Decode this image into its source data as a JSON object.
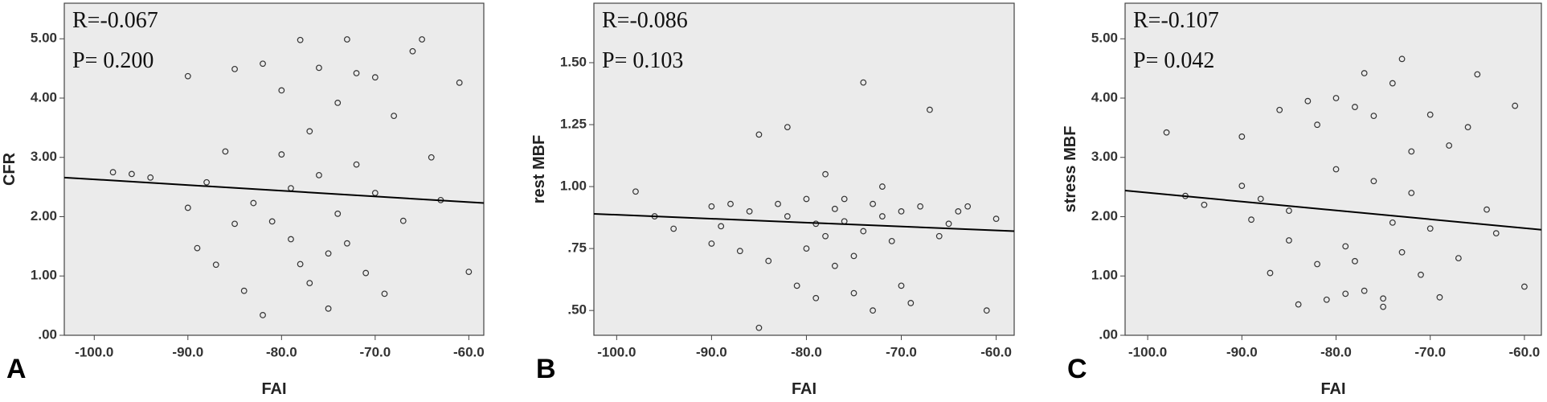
{
  "chart_data": [
    {
      "type": "scatter",
      "panel_label": "A",
      "x_label": "FAI",
      "y_label": "CFR",
      "annotations": [
        "R=-0.067",
        "P= 0.200"
      ],
      "background": "#ebebeb",
      "marker_color": "#333333",
      "fit_color": "#000000",
      "xlim": [
        -103.2,
        -58.4
      ],
      "ylim": [
        0,
        5.6
      ],
      "xticks": [
        {
          "value": -100,
          "label": "-100.0"
        },
        {
          "value": -90,
          "label": "-90.0"
        },
        {
          "value": -80,
          "label": "-80.0"
        },
        {
          "value": -70,
          "label": "-70.0"
        },
        {
          "value": -60,
          "label": "-60.0"
        }
      ],
      "yticks": [
        {
          "value": 0,
          "label": ".00"
        },
        {
          "value": 1,
          "label": "1.00"
        },
        {
          "value": 2,
          "label": "2.00"
        },
        {
          "value": 3,
          "label": "3.00"
        },
        {
          "value": 4,
          "label": "4.00"
        },
        {
          "value": 5,
          "label": "5.00"
        }
      ],
      "x": [
        -98,
        -96,
        -94,
        -90,
        -90,
        -89,
        -88,
        -87,
        -86,
        -85,
        -85,
        -84,
        -83,
        -82,
        -82,
        -81,
        -80,
        -80,
        -79,
        -79,
        -78,
        -78,
        -77,
        -77,
        -76,
        -76,
        -75,
        -75,
        -74,
        -74,
        -73,
        -73,
        -72,
        -72,
        -71,
        -70,
        -70,
        -69,
        -68,
        -67,
        -66,
        -65,
        -64,
        -63,
        -61,
        -60
      ],
      "y": [
        2.75,
        2.72,
        2.66,
        4.37,
        2.15,
        1.47,
        2.58,
        1.19,
        3.1,
        4.49,
        1.88,
        0.75,
        2.23,
        0.34,
        4.58,
        1.92,
        3.05,
        4.13,
        2.48,
        1.62,
        4.98,
        1.2,
        3.44,
        0.88,
        2.7,
        4.51,
        1.38,
        0.45,
        3.92,
        2.05,
        4.99,
        1.55,
        2.88,
        4.42,
        1.05,
        2.4,
        4.35,
        0.7,
        3.7,
        1.93,
        4.79,
        4.99,
        3.0,
        2.28,
        4.26,
        1.07
      ],
      "fit_line": {
        "x": [
          -103.2,
          -58.4
        ],
        "y": [
          2.66,
          2.23
        ]
      }
    },
    {
      "type": "scatter",
      "panel_label": "B",
      "x_label": "FAI",
      "y_label": "rest MBF",
      "annotations": [
        "R=-0.086",
        "P= 0.103"
      ],
      "background": "#ebebeb",
      "marker_color": "#333333",
      "fit_color": "#000000",
      "xlim": [
        -102.4,
        -58.1
      ],
      "ylim": [
        0.4,
        1.74
      ],
      "xticks": [
        {
          "value": -100,
          "label": "-100.0"
        },
        {
          "value": -90,
          "label": "-90.0"
        },
        {
          "value": -80,
          "label": "-80.0"
        },
        {
          "value": -70,
          "label": "-70.0"
        },
        {
          "value": -60,
          "label": "-60.0"
        }
      ],
      "yticks": [
        {
          "value": 0.5,
          "label": ".50"
        },
        {
          "value": 0.75,
          "label": ".75"
        },
        {
          "value": 1,
          "label": "1.00"
        },
        {
          "value": 1.25,
          "label": "1.25"
        },
        {
          "value": 1.5,
          "label": "1.50"
        }
      ],
      "x": [
        -98,
        -96,
        -94,
        -90,
        -90,
        -89,
        -88,
        -87,
        -86,
        -85,
        -85,
        -84,
        -83,
        -82,
        -82,
        -81,
        -80,
        -80,
        -79,
        -79,
        -78,
        -78,
        -77,
        -77,
        -76,
        -76,
        -75,
        -75,
        -74,
        -74,
        -73,
        -73,
        -72,
        -72,
        -71,
        -70,
        -70,
        -69,
        -68,
        -67,
        -66,
        -65,
        -64,
        -63,
        -61,
        -60
      ],
      "y": [
        0.98,
        0.88,
        0.83,
        0.92,
        0.77,
        0.84,
        0.93,
        0.74,
        0.9,
        1.21,
        0.43,
        0.7,
        0.93,
        0.88,
        1.24,
        0.6,
        0.95,
        0.75,
        0.85,
        0.55,
        1.05,
        0.8,
        0.91,
        0.68,
        0.86,
        0.95,
        0.72,
        0.57,
        1.42,
        0.82,
        0.93,
        0.5,
        0.88,
        1.0,
        0.78,
        0.9,
        0.6,
        0.53,
        0.92,
        1.31,
        0.8,
        0.85,
        0.9,
        0.92,
        0.5,
        0.87
      ],
      "fit_line": {
        "x": [
          -102.4,
          -58.1
        ],
        "y": [
          0.89,
          0.82
        ]
      }
    },
    {
      "type": "scatter",
      "panel_label": "C",
      "x_label": "FAI",
      "y_label": "stress MBF",
      "annotations": [
        "R=-0.107",
        "P= 0.042"
      ],
      "background": "#ebebeb",
      "marker_color": "#333333",
      "fit_color": "#000000",
      "xlim": [
        -102.4,
        -58.2
      ],
      "ylim": [
        0,
        5.6
      ],
      "xticks": [
        {
          "value": -100,
          "label": "-100.0"
        },
        {
          "value": -90,
          "label": "-90.0"
        },
        {
          "value": -80,
          "label": "-80.0"
        },
        {
          "value": -70,
          "label": "-70.0"
        },
        {
          "value": -60,
          "label": "-60.0"
        }
      ],
      "yticks": [
        {
          "value": 0,
          "label": ".00"
        },
        {
          "value": 1,
          "label": "1.00"
        },
        {
          "value": 2,
          "label": "2.00"
        },
        {
          "value": 3,
          "label": "3.00"
        },
        {
          "value": 4,
          "label": "4.00"
        },
        {
          "value": 5,
          "label": "5.00"
        }
      ],
      "x": [
        -98,
        -96,
        -94,
        -90,
        -90,
        -89,
        -88,
        -87,
        -86,
        -85,
        -85,
        -84,
        -83,
        -82,
        -82,
        -81,
        -80,
        -80,
        -79,
        -79,
        -78,
        -78,
        -77,
        -77,
        -76,
        -76,
        -75,
        -75,
        -74,
        -74,
        -73,
        -73,
        -72,
        -72,
        -71,
        -70,
        -70,
        -69,
        -68,
        -67,
        -66,
        -65,
        -64,
        -63,
        -61,
        -60
      ],
      "y": [
        3.42,
        2.35,
        2.2,
        2.52,
        3.35,
        1.95,
        2.3,
        1.05,
        3.8,
        1.6,
        2.1,
        0.52,
        3.95,
        1.2,
        3.55,
        0.6,
        4.0,
        2.8,
        1.5,
        0.7,
        3.85,
        1.25,
        4.42,
        0.75,
        2.6,
        3.7,
        0.48,
        0.62,
        4.25,
        1.9,
        4.66,
        1.4,
        3.1,
        2.4,
        1.02,
        3.72,
        1.8,
        0.64,
        3.2,
        1.3,
        3.51,
        4.4,
        2.12,
        1.72,
        3.87,
        0.82
      ],
      "fit_line": {
        "x": [
          -102.4,
          -58.2
        ],
        "y": [
          2.44,
          1.78
        ]
      }
    }
  ]
}
